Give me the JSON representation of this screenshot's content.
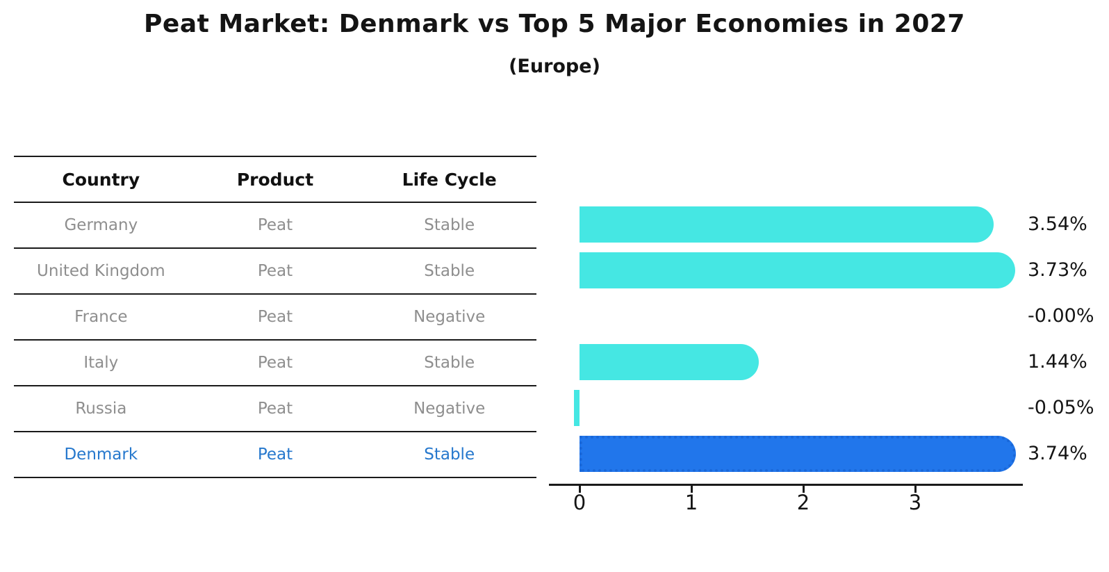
{
  "title": "Peat Market: Denmark vs Top 5 Major Economies in 2027",
  "subtitle": "(Europe)",
  "table": {
    "columns": [
      "Country",
      "Product",
      "Life Cycle"
    ],
    "rows": [
      {
        "country": "Germany",
        "product": "Peat",
        "life_cycle": "Stable",
        "highlight": false
      },
      {
        "country": "United Kingdom",
        "product": "Peat",
        "life_cycle": "Stable",
        "highlight": false
      },
      {
        "country": "France",
        "product": "Peat",
        "life_cycle": "Negative",
        "highlight": false
      },
      {
        "country": "Italy",
        "product": "Peat",
        "life_cycle": "Stable",
        "highlight": false
      },
      {
        "country": "Russia",
        "product": "Peat",
        "life_cycle": "Negative",
        "highlight": false
      },
      {
        "country": "Denmark",
        "product": "Peat",
        "life_cycle": "Stable",
        "highlight": true
      }
    ]
  },
  "chart_data": {
    "type": "bar",
    "orientation": "horizontal",
    "title": "Peat Market: Denmark vs Top 5 Major Economies in 2027",
    "subtitle": "(Europe)",
    "categories": [
      "Germany",
      "United Kingdom",
      "France",
      "Italy",
      "Russia",
      "Denmark"
    ],
    "values": [
      3.54,
      3.73,
      -0.0,
      1.44,
      -0.05,
      3.74
    ],
    "value_labels": [
      "3.54%",
      "3.73%",
      "-0.00%",
      "1.44%",
      "-0.05%",
      "3.74%"
    ],
    "x_ticks": [
      "0",
      "1",
      "2",
      "3"
    ],
    "xlim": [
      -0.27,
      3.96
    ],
    "grid": false,
    "legend": false,
    "highlight_index": 5
  },
  "colors": {
    "bar": "#45e7e3",
    "highlight_bar": "#2176eb",
    "highlight_border": "#1a68d9",
    "highlight_text": "#2678cd",
    "table_text": "#8e8e8e",
    "header_text": "#111111",
    "axis": "#1a1a1a"
  }
}
